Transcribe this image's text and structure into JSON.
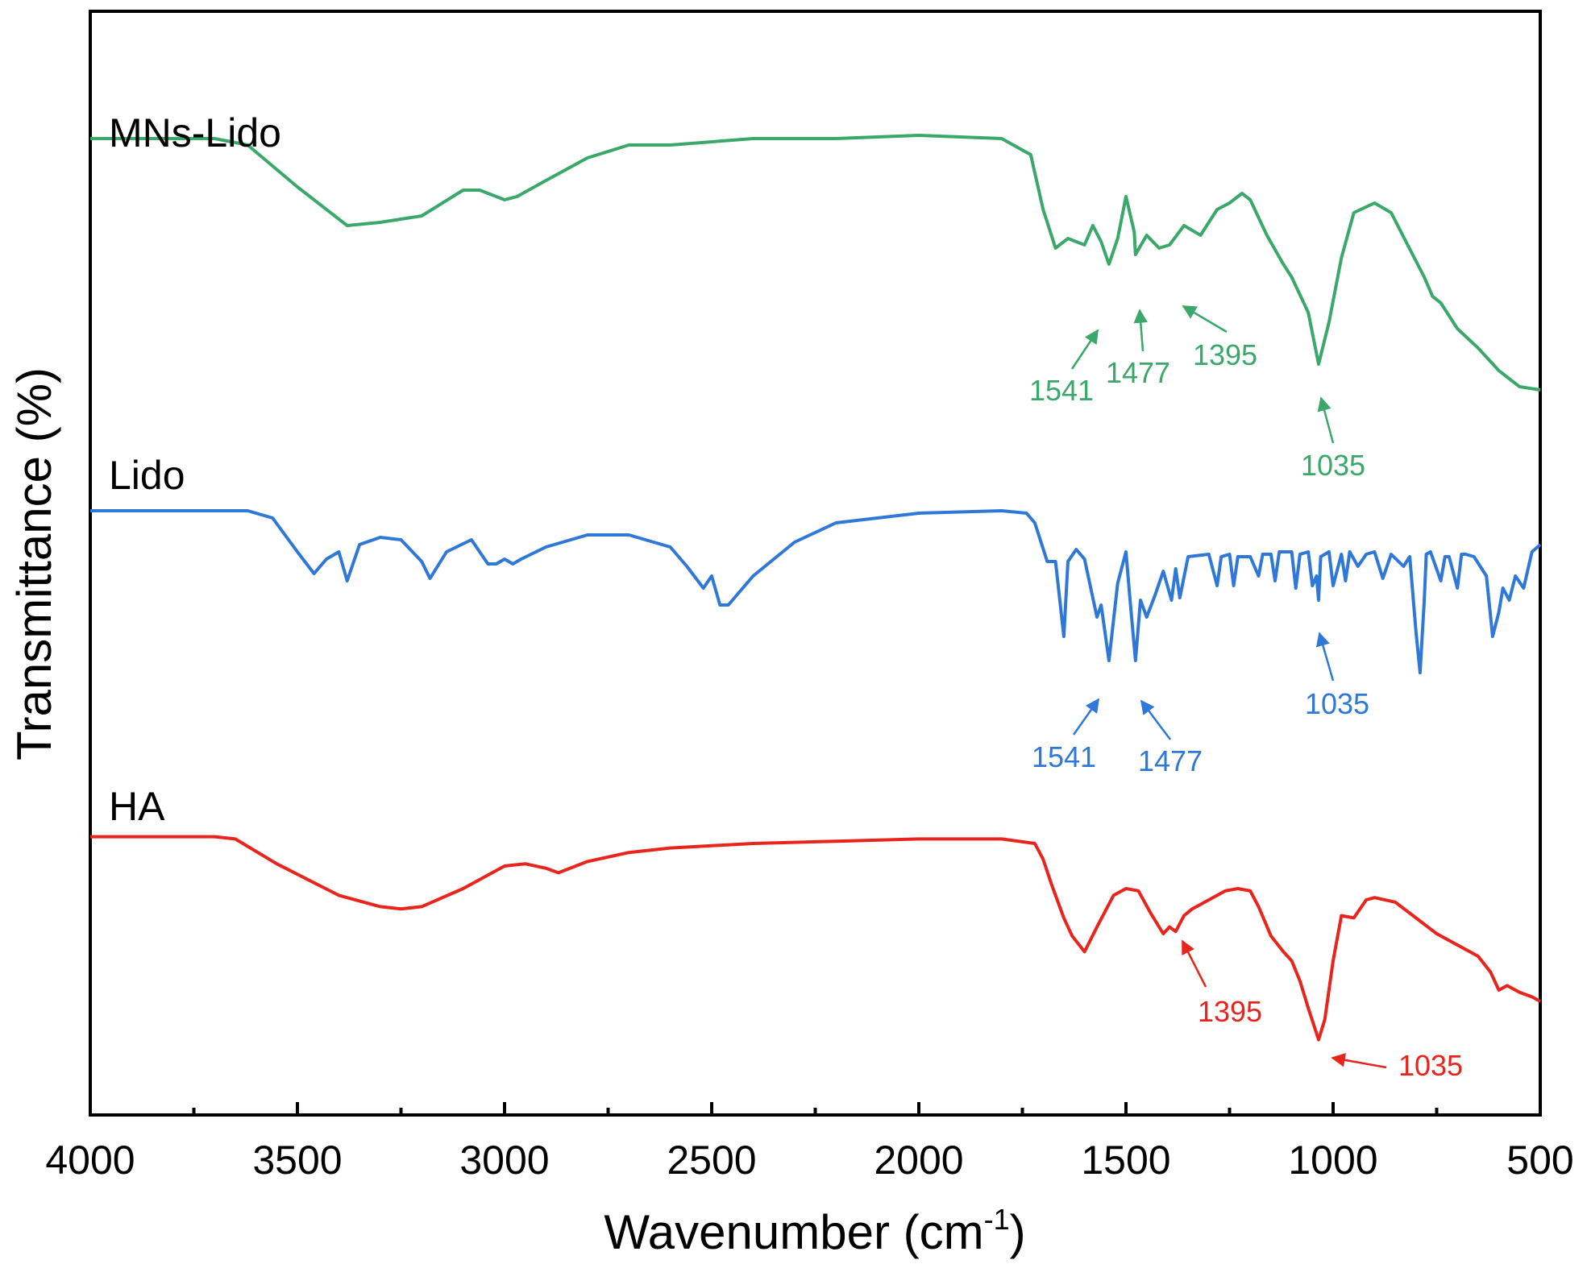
{
  "chart_data": {
    "type": "line",
    "title": "",
    "xlabel": "Wavenumber (cm",
    "xlabel_sup": "-1",
    "xlabel_suffix": ")",
    "ylabel": "Transmittance (%)",
    "xlim": [
      4000,
      500
    ],
    "x_reversed": true,
    "grid": false,
    "yticks_shown": false,
    "xticks": [
      4000,
      3500,
      3000,
      2500,
      2000,
      1500,
      1000,
      500
    ],
    "xtick_labels": [
      "4000",
      "3500",
      "3000",
      "2500",
      "2000",
      "1500",
      "1000",
      "500"
    ],
    "minor_xticks": [
      3750,
      3250,
      2750,
      2250,
      1750,
      1250,
      750
    ],
    "series": [
      {
        "name": "MNs-Lido",
        "color": "#3aa86b",
        "level_range": [
          0,
          100
        ],
        "x": [
          4000,
          3700,
          3620,
          3500,
          3380,
          3300,
          3200,
          3100,
          3060,
          3000,
          2970,
          2900,
          2800,
          2700,
          2600,
          2400,
          2200,
          2000,
          1800,
          1730,
          1700,
          1670,
          1640,
          1600,
          1580,
          1560,
          1541,
          1520,
          1500,
          1480,
          1477,
          1450,
          1420,
          1395,
          1360,
          1320,
          1280,
          1250,
          1220,
          1200,
          1160,
          1120,
          1100,
          1060,
          1035,
          1010,
          980,
          950,
          900,
          860,
          820,
          780,
          760,
          740,
          700,
          650,
          600,
          550,
          500
        ],
        "values": [
          97,
          97,
          95,
          82,
          70,
          71,
          73,
          81,
          81,
          78,
          79,
          84,
          91,
          95,
          95,
          97,
          97,
          98,
          97,
          92,
          75,
          63,
          66,
          64,
          70,
          65,
          58,
          66,
          79,
          68,
          61,
          67,
          63,
          64,
          70,
          67,
          75,
          77,
          80,
          78,
          67,
          58,
          54,
          43,
          27,
          40,
          60,
          74,
          77,
          74,
          64,
          54,
          48,
          46,
          38,
          32,
          25,
          20,
          19
        ]
      },
      {
        "name": "Lido",
        "color": "#2f78d8",
        "level_range": [
          0,
          100
        ],
        "x": [
          4000,
          3620,
          3560,
          3500,
          3460,
          3430,
          3400,
          3380,
          3350,
          3300,
          3250,
          3200,
          3180,
          3140,
          3080,
          3040,
          3020,
          3000,
          2980,
          2960,
          2900,
          2800,
          2700,
          2600,
          2560,
          2520,
          2500,
          2480,
          2460,
          2400,
          2300,
          2200,
          2000,
          1800,
          1740,
          1720,
          1690,
          1670,
          1650,
          1640,
          1620,
          1600,
          1570,
          1560,
          1541,
          1520,
          1500,
          1490,
          1477,
          1465,
          1450,
          1430,
          1410,
          1390,
          1380,
          1370,
          1350,
          1300,
          1280,
          1270,
          1250,
          1240,
          1230,
          1200,
          1180,
          1170,
          1150,
          1140,
          1130,
          1100,
          1090,
          1080,
          1060,
          1050,
          1040,
          1035,
          1030,
          1010,
          1000,
          980,
          970,
          960,
          940,
          920,
          900,
          880,
          860,
          830,
          815,
          800,
          790,
          780,
          775,
          765,
          740,
          730,
          720,
          700,
          690,
          680,
          660,
          630,
          615,
          600,
          590,
          575,
          560,
          540,
          520,
          500
        ],
        "values": [
          97,
          97,
          94,
          80,
          71,
          77,
          80,
          68,
          83,
          86,
          85,
          76,
          69,
          80,
          85,
          75,
          75,
          77,
          75,
          77,
          82,
          87,
          87,
          82,
          74,
          65,
          70,
          58,
          58,
          70,
          84,
          92,
          96,
          97,
          96,
          92,
          76,
          76,
          45,
          76,
          81,
          77,
          53,
          58,
          35,
          67,
          80,
          60,
          35,
          60,
          53,
          62,
          72,
          60,
          73,
          61,
          78,
          79,
          66,
          78,
          79,
          66,
          78,
          78,
          70,
          79,
          79,
          68,
          80,
          80,
          65,
          79,
          80,
          66,
          70,
          60,
          78,
          80,
          66,
          79,
          68,
          80,
          74,
          79,
          80,
          69,
          79,
          74,
          78,
          47,
          30,
          60,
          79,
          80,
          68,
          78,
          78,
          65,
          79,
          79,
          78,
          70,
          45,
          55,
          65,
          60,
          70,
          65,
          80,
          83
        ]
      },
      {
        "name": "HA",
        "color": "#e8241c",
        "level_range": [
          0,
          100
        ],
        "x": [
          4000,
          3700,
          3650,
          3550,
          3400,
          3300,
          3250,
          3200,
          3100,
          3000,
          2950,
          2900,
          2870,
          2800,
          2700,
          2600,
          2400,
          2200,
          2000,
          1800,
          1720,
          1700,
          1680,
          1650,
          1630,
          1600,
          1570,
          1530,
          1500,
          1470,
          1440,
          1410,
          1395,
          1380,
          1360,
          1340,
          1300,
          1260,
          1230,
          1200,
          1180,
          1150,
          1120,
          1100,
          1080,
          1060,
          1035,
          1020,
          1000,
          980,
          950,
          920,
          900,
          850,
          800,
          750,
          700,
          650,
          620,
          600,
          580,
          550,
          520,
          500
        ],
        "values": [
          98,
          98,
          97,
          86,
          72,
          67,
          66,
          67,
          75,
          85,
          86,
          84,
          82,
          87,
          91,
          93,
          95,
          96,
          97,
          97,
          95,
          88,
          77,
          62,
          54,
          47,
          58,
          72,
          75,
          74,
          64,
          55,
          58,
          56,
          63,
          66,
          70,
          74,
          75,
          74,
          67,
          54,
          47,
          43,
          34,
          22,
          8,
          17,
          43,
          63,
          62,
          70,
          71,
          69,
          62,
          55,
          50,
          45,
          38,
          30,
          32,
          29,
          27,
          25
        ]
      }
    ],
    "annotations": [
      {
        "series": "MNs-Lido",
        "text": "1541",
        "x": 1541,
        "color": "#3aa86b"
      },
      {
        "series": "MNs-Lido",
        "text": "1477",
        "x": 1477,
        "color": "#3aa86b"
      },
      {
        "series": "MNs-Lido",
        "text": "1395",
        "x": 1395,
        "color": "#3aa86b"
      },
      {
        "series": "MNs-Lido",
        "text": "1035",
        "x": 1035,
        "color": "#3aa86b"
      },
      {
        "series": "Lido",
        "text": "1541",
        "x": 1541,
        "color": "#2f78d8"
      },
      {
        "series": "Lido",
        "text": "1477",
        "x": 1477,
        "color": "#2f78d8"
      },
      {
        "series": "Lido",
        "text": "1035",
        "x": 1035,
        "color": "#2f78d8"
      },
      {
        "series": "HA",
        "text": "1395",
        "x": 1395,
        "color": "#e8241c"
      },
      {
        "series": "HA",
        "text": "1035",
        "x": 1035,
        "color": "#e8241c"
      }
    ]
  }
}
